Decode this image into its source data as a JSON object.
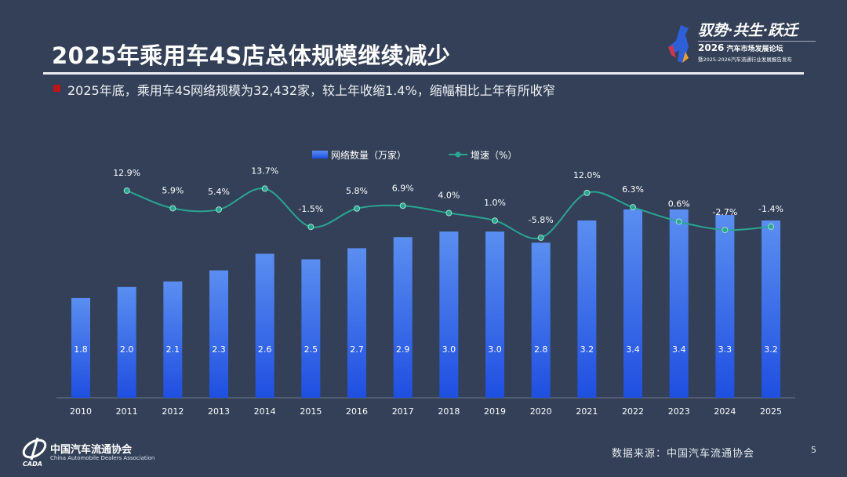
{
  "header": {
    "title": "2025年乘用车4S店总体规模继续减少",
    "subtitle": "2025年底，乘用车4S网络规模为32,432家，较上年收缩1.4%，缩幅相比上年有所收窄"
  },
  "event_logo": {
    "slogan": "驭势·共生·跃迁",
    "year": "2026",
    "line1": "汽车市场发展论坛",
    "line2": "暨2025-2026汽车流通行业发展报告发布"
  },
  "footer": {
    "org_cn": "中国汽车流通协会",
    "org_en": "China Automobile Dealers Association",
    "org_abbr": "CADA",
    "source": "数据来源：中国汽车流通协会",
    "page_number": "5"
  },
  "colors": {
    "background": "#334058",
    "bar_top": "#5b8ef0",
    "bar_bottom": "#1f4fe0",
    "line": "#2aa58f",
    "accent": "#c0141b"
  },
  "chart_data": {
    "type": "bar+line",
    "categories": [
      "2010",
      "2011",
      "2012",
      "2013",
      "2014",
      "2015",
      "2016",
      "2017",
      "2018",
      "2019",
      "2020",
      "2021",
      "2022",
      "2023",
      "2024",
      "2025"
    ],
    "legend_position": "top",
    "grid": false,
    "series": [
      {
        "name": "网络数量（万家）",
        "type": "bar",
        "values": [
          1.8,
          2.0,
          2.1,
          2.3,
          2.6,
          2.5,
          2.7,
          2.9,
          3.0,
          3.0,
          2.8,
          3.2,
          3.4,
          3.4,
          3.3,
          3.2
        ],
        "labels": [
          "1.8",
          "2.0",
          "2.1",
          "2.3",
          "2.6",
          "2.5",
          "2.7",
          "2.9",
          "3.0",
          "3.0",
          "2.8",
          "3.2",
          "3.4",
          "3.4",
          "3.3",
          "3.2"
        ]
      },
      {
        "name": "增速（%）",
        "type": "line",
        "values": [
          null,
          12.9,
          5.9,
          5.4,
          13.7,
          -1.5,
          5.8,
          6.9,
          4.0,
          1.0,
          -5.8,
          12.0,
          6.3,
          0.6,
          -2.7,
          -1.4
        ],
        "labels": [
          "",
          "12.9%",
          "5.9%",
          "5.4%",
          "13.7%",
          "-1.5%",
          "5.8%",
          "6.9%",
          "4.0%",
          "1.0%",
          "-5.8%",
          "12.0%",
          "6.3%",
          "0.6%",
          "-2.7%",
          "-1.4%"
        ]
      }
    ]
  }
}
